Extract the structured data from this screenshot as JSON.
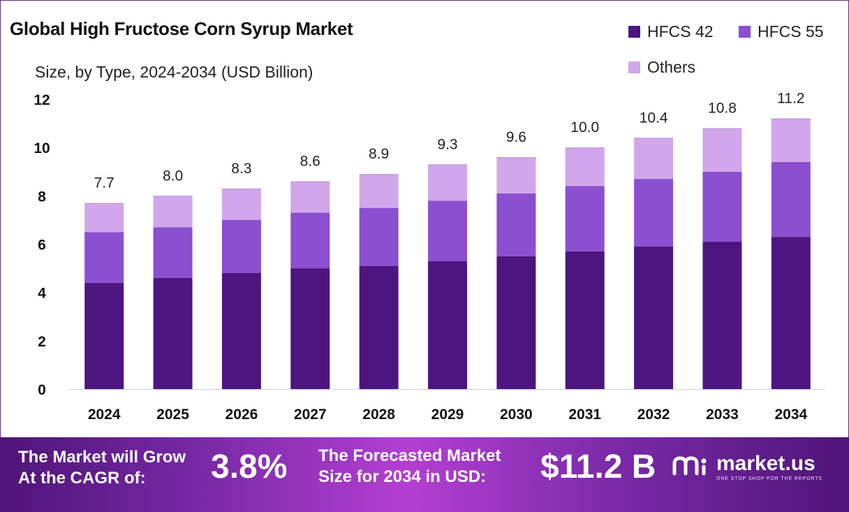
{
  "chart_data": {
    "type": "bar",
    "stacked": true,
    "title": "Global High Fructose Corn Syrup Market",
    "subtitle": "Size, by Type, 2024-2034 (USD Billion)",
    "categories": [
      "2024",
      "2025",
      "2026",
      "2027",
      "2028",
      "2029",
      "2030",
      "2031",
      "2032",
      "2033",
      "2034"
    ],
    "series": [
      {
        "name": "HFCS 42",
        "color": "#4d1580",
        "values": [
          4.4,
          4.6,
          4.8,
          5.0,
          5.1,
          5.3,
          5.5,
          5.7,
          5.9,
          6.1,
          6.3
        ]
      },
      {
        "name": "HFCS 55",
        "color": "#8b4fcf",
        "values": [
          2.1,
          2.1,
          2.2,
          2.3,
          2.4,
          2.5,
          2.6,
          2.7,
          2.8,
          2.9,
          3.1
        ]
      },
      {
        "name": "Others",
        "color": "#d2a6ea",
        "values": [
          1.2,
          1.3,
          1.3,
          1.3,
          1.4,
          1.5,
          1.5,
          1.6,
          1.7,
          1.8,
          1.8
        ]
      }
    ],
    "totals": [
      "7.7",
      "8.0",
      "8.3",
      "8.6",
      "8.9",
      "9.3",
      "9.6",
      "10.0",
      "10.4",
      "10.8",
      "11.2"
    ],
    "ylim": [
      0,
      12
    ],
    "yticks": [
      0,
      2,
      4,
      6,
      8,
      10,
      12
    ],
    "grid": false,
    "legend_position": "top-right"
  },
  "banner": {
    "cagr_label_line1": "The Market will Grow",
    "cagr_label_line2": "At the CAGR of:",
    "cagr_value": "3.8%",
    "forecast_label_line1": "The Forecasted Market",
    "forecast_label_line2": "Size for 2034 in USD:",
    "forecast_value": "$11.2 B",
    "brand_name": "market.us",
    "brand_tagline": "ONE STOP SHOP FOR THE REPORTS"
  }
}
